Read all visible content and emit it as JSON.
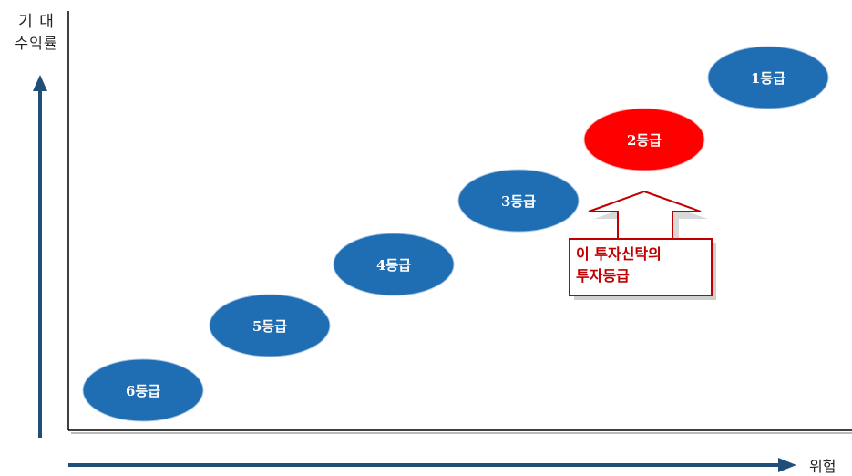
{
  "axis": {
    "y_label_line1": "기 대",
    "y_label_line2": "수익률",
    "x_label": "위험"
  },
  "grades": [
    {
      "label": "1등급",
      "highlighted": false
    },
    {
      "label": "2등급",
      "highlighted": true
    },
    {
      "label": "3등급",
      "highlighted": false
    },
    {
      "label": "4등급",
      "highlighted": false
    },
    {
      "label": "5등급",
      "highlighted": false
    },
    {
      "label": "6등급",
      "highlighted": false
    }
  ],
  "callout": {
    "line1": "이 투자신탁의",
    "line2": "투자등급"
  },
  "colors": {
    "blue": "#1f6db3",
    "red": "#ff0000",
    "arrow": "#1f4e79",
    "callout_text": "#c00000",
    "callout_border": "#c00000"
  }
}
